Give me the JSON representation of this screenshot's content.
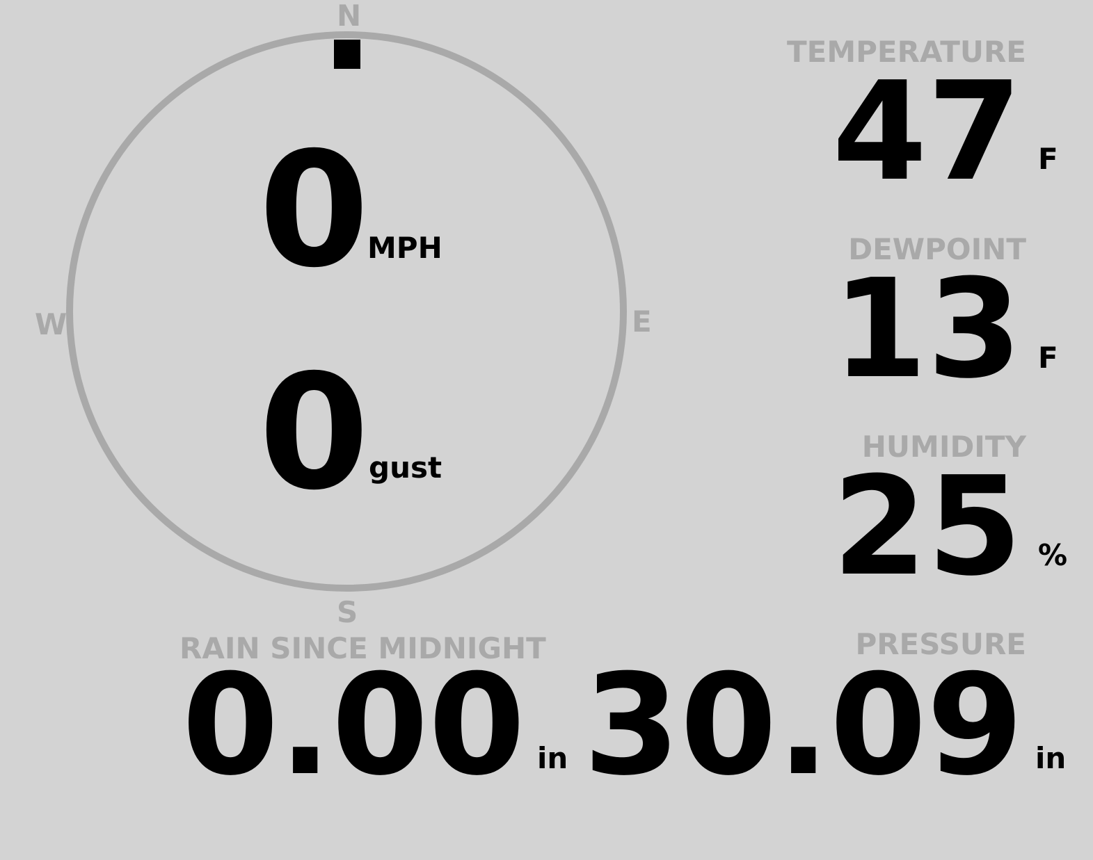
{
  "wind": {
    "compass": {
      "north": "N",
      "south": "S",
      "east": "E",
      "west": "W",
      "direction_degrees": 0
    },
    "speed": {
      "value": "0",
      "unit": "MPH"
    },
    "gust": {
      "value": "0",
      "unit": "gust"
    }
  },
  "temperature": {
    "label": "TEMPERATURE",
    "value": "47",
    "unit": "F"
  },
  "dewpoint": {
    "label": "DEWPOINT",
    "value": "13",
    "unit": "F"
  },
  "humidity": {
    "label": "HUMIDITY",
    "value": "25",
    "unit": "%"
  },
  "rain": {
    "label": "RAIN SINCE MIDNIGHT",
    "value": "0.00",
    "unit": "in"
  },
  "pressure": {
    "label": "PRESSURE",
    "value": "30.09",
    "unit": "in"
  },
  "colors": {
    "background": "#d3d3d3",
    "label": "#a9a9a9",
    "value": "#000000"
  }
}
